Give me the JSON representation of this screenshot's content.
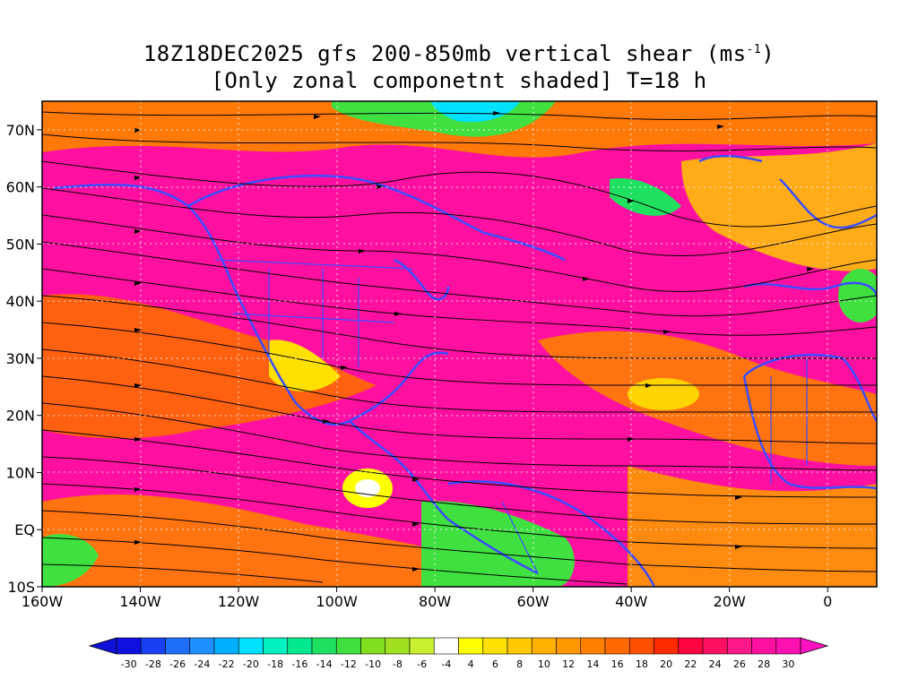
{
  "title": {
    "line1_pre": "18Z18DEC2025 gfs 200-850mb vertical shear (ms",
    "line1_sup": "-1",
    "line1_post": ")",
    "line2": "[Only zonal componetnt shaded] T=18 h"
  },
  "axes": {
    "lat_labels": [
      "70N",
      "60N",
      "50N",
      "40N",
      "30N",
      "20N",
      "10N",
      "EQ",
      "10S"
    ],
    "lon_labels": [
      "160W",
      "140W",
      "120W",
      "100W",
      "80W",
      "60W",
      "40W",
      "20W",
      "0"
    ]
  },
  "colorbar": {
    "labels": [
      "-30",
      "-28",
      "-26",
      "-24",
      "-22",
      "-20",
      "-18",
      "-16",
      "-14",
      "-12",
      "-10",
      "-8",
      "-6",
      "-4",
      "4",
      "6",
      "8",
      "10",
      "12",
      "14",
      "16",
      "18",
      "20",
      "22",
      "24",
      "26",
      "28",
      "30"
    ],
    "colors": [
      "#1010e0",
      "#1a3ff0",
      "#1e6ef8",
      "#1e90ff",
      "#00b0ff",
      "#00e0ff",
      "#00f0c0",
      "#00e890",
      "#20e060",
      "#40e040",
      "#80e020",
      "#a0e020",
      "#c8f030",
      "#ffffff",
      "#ffff00",
      "#ffe000",
      "#ffc800",
      "#ffb000",
      "#ff9800",
      "#ff8000",
      "#ff6a00",
      "#ff5000",
      "#ff2a00",
      "#ff0040",
      "#ff1060",
      "#ff1888",
      "#ff10a0",
      "#ff10b0"
    ]
  },
  "chart_data": {
    "type": "heatmap",
    "variable": "200-850mb vertical shear (zonal component shaded)",
    "units": "ms-1",
    "lon_range": [
      -160,
      10
    ],
    "lat_range": [
      -10,
      75
    ],
    "color_levels": [
      -30,
      -28,
      -26,
      -24,
      -22,
      -20,
      -18,
      -16,
      -14,
      -12,
      -10,
      -8,
      -6,
      -4,
      4,
      6,
      8,
      10,
      12,
      14,
      16,
      18,
      20,
      22,
      24,
      26,
      28,
      30
    ],
    "overlays": [
      "streamlines",
      "coastlines",
      "country borders",
      "state borders",
      "contours"
    ],
    "grid": true
  }
}
